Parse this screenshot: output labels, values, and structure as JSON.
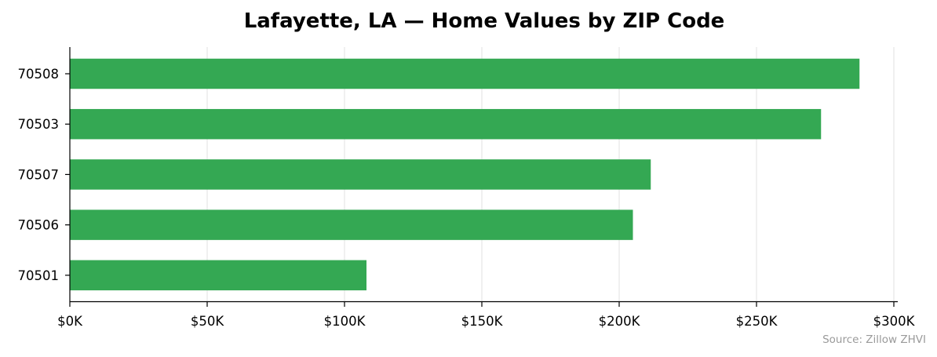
{
  "chart_data": {
    "type": "bar",
    "orientation": "horizontal",
    "title": "Lafayette, LA — Home Values by ZIP Code",
    "xlabel": "",
    "ylabel": "",
    "categories": [
      "70508",
      "70503",
      "70507",
      "70506",
      "70501"
    ],
    "values": [
      287500,
      273500,
      211500,
      205000,
      108000
    ],
    "xlim": [
      0,
      300000
    ],
    "x_ticks": [
      0,
      50000,
      100000,
      150000,
      200000,
      250000,
      300000
    ],
    "x_tick_labels": [
      "$0K",
      "$50K",
      "$100K",
      "$150K",
      "$200K",
      "$250K",
      "$300K"
    ],
    "grid": "vertical",
    "bar_color": "#34a853",
    "source": "Source: Zillow ZHVI"
  }
}
